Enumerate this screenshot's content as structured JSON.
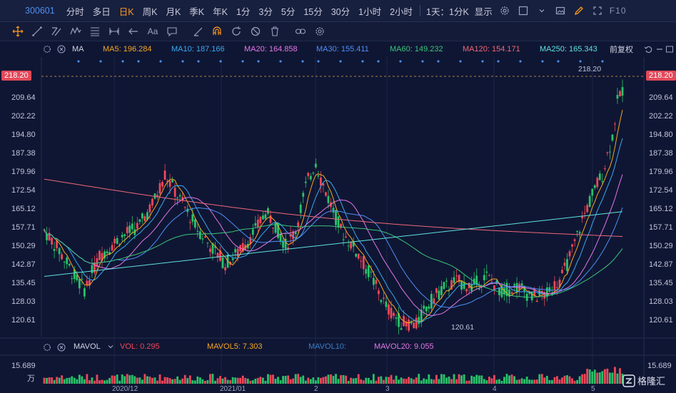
{
  "topbar": {
    "code": "300601",
    "periods": [
      "分时",
      "多日",
      "日K",
      "周K",
      "月K",
      "季K",
      "年K",
      "1分",
      "3分",
      "5分",
      "15分",
      "30分",
      "1小时",
      "2小时"
    ],
    "active_period": "日K",
    "range_select": "1天：1分K",
    "display": "显示",
    "fio": "F10"
  },
  "ma_legend": {
    "label": "MA",
    "items": [
      {
        "text": "MA5: 196.284",
        "color": "#f5a623"
      },
      {
        "text": "MA10: 187.166",
        "color": "#3aa9f0"
      },
      {
        "text": "MA20: 164.858",
        "color": "#e476e8"
      },
      {
        "text": "MA30: 155.411",
        "color": "#4e8ff7"
      },
      {
        "text": "MA60: 149.232",
        "color": "#3cc47c"
      },
      {
        "text": "MA120: 154.171",
        "color": "#f0697a"
      },
      {
        "text": "MA250: 165.343",
        "color": "#5fe0e0"
      }
    ],
    "adjust": "前复权"
  },
  "price_axis": {
    "current_price": "218.20",
    "ticks": [
      "209.64",
      "202.22",
      "194.80",
      "187.38",
      "179.96",
      "172.54",
      "165.12",
      "157.71",
      "150.29",
      "142.87",
      "135.45",
      "128.03",
      "120.61"
    ],
    "high_label": "218.20",
    "low_label": "120.61"
  },
  "volume": {
    "label": "MAVOL",
    "vol": "VOL: 0.295",
    "mavol5": "MAVOL5: 7.303",
    "mavol10": "MAVOL10:",
    "mavol20": "MAVOL20: 9.055",
    "axis_value": "15.689",
    "unit": "万"
  },
  "dates": [
    "2020/12",
    "2021/01",
    "2",
    "3",
    "4",
    "5"
  ],
  "watermark": "格隆汇",
  "colors": {
    "up": "#f0475a",
    "down": "#29c36a",
    "bg": "#0f1633",
    "accent": "#ff9a1a"
  }
}
